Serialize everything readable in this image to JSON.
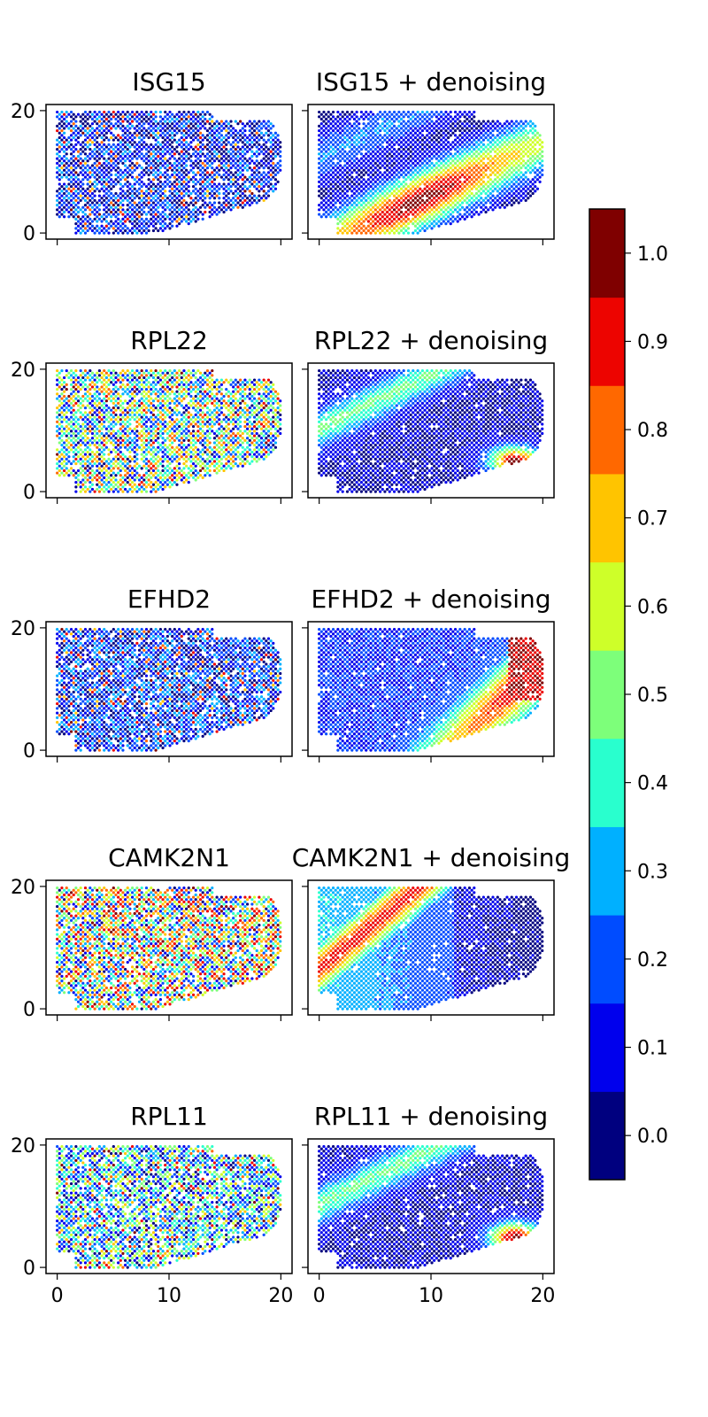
{
  "chart_data": {
    "type": "heatmap",
    "description_kind": "spatial scatter heatmaps, 5 genes x (raw, denoised)",
    "colormap": "jet",
    "colormap_levels": 11,
    "colorbar": {
      "ticks": [
        "0.0",
        "0.1",
        "0.2",
        "0.3",
        "0.4",
        "0.5",
        "0.6",
        "0.7",
        "0.8",
        "0.9",
        "1.0"
      ],
      "range": [
        -0.05,
        1.05
      ]
    },
    "xlim": [
      -1,
      21
    ],
    "ylim": [
      -1,
      21
    ],
    "xticks": [
      "0",
      "10",
      "20"
    ],
    "yticks": [
      "0",
      "20"
    ],
    "panels": [
      {
        "gene": "ISG15",
        "raw_title": "ISG15",
        "denoised_title": "ISG15 + denoising",
        "pattern": "diag_band",
        "center": [
          7,
          7
        ],
        "raw_level": 0.12
      },
      {
        "gene": "RPL22",
        "raw_title": "RPL22",
        "denoised_title": "RPL22 + denoising",
        "pattern": "corner_hot",
        "center": [
          17,
          5
        ],
        "raw_level": 0.4
      },
      {
        "gene": "EFHD2",
        "raw_title": "EFHD2",
        "denoised_title": "EFHD2 + denoising",
        "pattern": "right_band",
        "center": [
          16,
          8
        ],
        "raw_level": 0.15
      },
      {
        "gene": "CAMK2N1",
        "raw_title": "CAMK2N1",
        "denoised_title": "CAMK2N1 + denoising",
        "pattern": "left_band",
        "center": [
          5,
          12
        ],
        "raw_level": 0.5
      },
      {
        "gene": "RPL11",
        "raw_title": "RPL11",
        "denoised_title": "RPL11 + denoising",
        "pattern": "corner_hot",
        "center": [
          17,
          5
        ],
        "raw_level": 0.33
      }
    ]
  }
}
